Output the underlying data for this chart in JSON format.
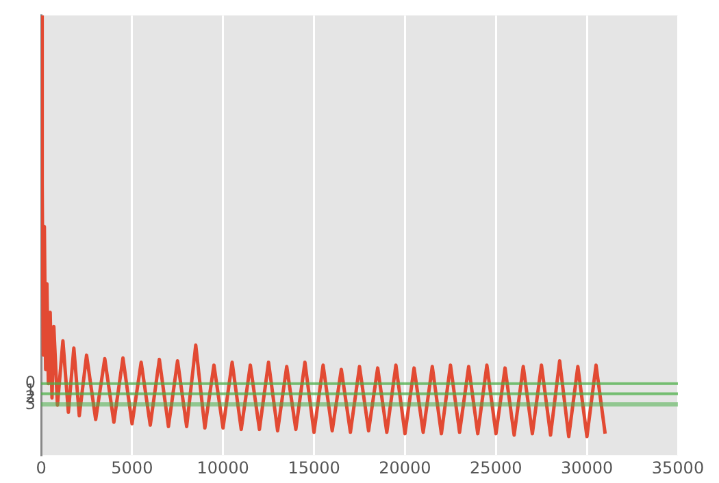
{
  "chart_data": {
    "type": "line",
    "x": [
      0,
      60,
      120,
      180,
      250,
      320,
      400,
      500,
      600,
      700,
      900,
      1200,
      1500,
      1800,
      2100,
      2500,
      3000,
      3500,
      4000,
      4500,
      5000,
      5500,
      6000,
      6500,
      7000,
      7500,
      8000,
      8500,
      9000,
      9500,
      10000,
      10500,
      11000,
      11500,
      12000,
      12500,
      13000,
      13500,
      14000,
      14500,
      15000,
      15500,
      16000,
      16500,
      17000,
      17500,
      18000,
      18500,
      19000,
      19500,
      20000,
      20500,
      21000,
      21500,
      22000,
      22500,
      23000,
      23500,
      24000,
      24500,
      25000,
      25500,
      26000,
      26500,
      27000,
      27500,
      28000,
      28500,
      29000,
      29500,
      30000,
      30500,
      31000
    ],
    "series": [
      {
        "color": "#e24a33",
        "values": [
          -51.6,
          -28,
          -4,
          -22,
          -2,
          -14,
          0,
          -10,
          2,
          -8,
          3,
          -6,
          4,
          -5,
          4.5,
          -4,
          5,
          -3.5,
          5.4,
          -3.6,
          5.6,
          -3,
          5.8,
          -3.4,
          6,
          -3.2,
          6,
          -5.4,
          6.2,
          -2.6,
          6.2,
          -3,
          6.4,
          -2.6,
          6.4,
          -3,
          6.6,
          -2.4,
          6.4,
          -3,
          6.8,
          -2.6,
          6.6,
          -2,
          6.8,
          -2.4,
          6.6,
          -2.2,
          6.8,
          -2.6,
          7,
          -2.2,
          6.8,
          -2.4,
          7,
          -2.6,
          6.8,
          -2.4,
          7,
          -2.6,
          7,
          -2.2,
          7.2,
          -2.4,
          7,
          -2.6,
          7.2,
          -3.2,
          7.4,
          -2.4,
          7.4,
          -2.6,
          7
        ]
      }
    ],
    "xlim": [
      0,
      35000
    ],
    "xticks": [
      0,
      5000,
      10000,
      15000,
      20000,
      25000,
      30000,
      35000
    ],
    "ylim": [
      10,
      -51.6
    ],
    "yticks": [
      0,
      1,
      2,
      3
    ],
    "ref_lines": [
      {
        "axis": "y",
        "value": 0,
        "color": "#4daf4a"
      },
      {
        "axis": "y",
        "value": 1.4,
        "color": "#4daf4a"
      }
    ],
    "bands": [
      {
        "axis": "y",
        "from": 2.6,
        "to": 3.2,
        "color": "#4daf4a"
      }
    ],
    "grid": "x",
    "legend": false,
    "marker": "none",
    "line_style": "solid"
  }
}
